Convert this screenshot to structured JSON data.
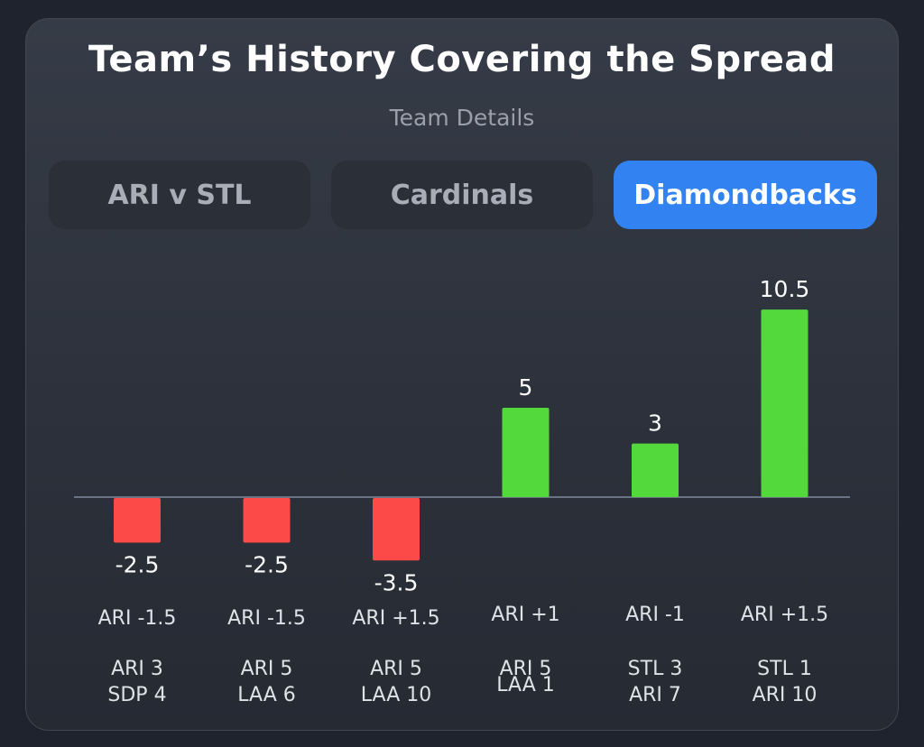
{
  "header": {
    "title": "Team’s History Covering the Spread",
    "subtitle": "Team Details"
  },
  "tabs": [
    {
      "label": "ARI v STL",
      "active": false
    },
    {
      "label": "Cardinals",
      "active": false
    },
    {
      "label": "Diamondbacks",
      "active": true
    }
  ],
  "colors": {
    "positive": "#53d93c",
    "negative": "#fb4a48",
    "accent": "#3283f1"
  },
  "chart_data": {
    "type": "bar",
    "values": [
      -2.5,
      -2.5,
      -3.5,
      5,
      3,
      10.5
    ],
    "value_labels": [
      "-2.5",
      "-2.5",
      "-3.5",
      "5",
      "3",
      "10.5"
    ],
    "spreads": [
      "ARI -1.5",
      "ARI -1.5",
      "ARI +1.5",
      "ARI +1",
      "ARI -1",
      "ARI +1.5"
    ],
    "scores": [
      [
        "ARI 3",
        "SDP 4"
      ],
      [
        "ARI 5",
        "LAA 6"
      ],
      [
        "ARI 5",
        "LAA 10"
      ],
      [
        "ARI 5",
        "LAA 1"
      ],
      [
        "STL 3",
        "ARI 7"
      ],
      [
        "STL 1",
        "ARI 10"
      ]
    ]
  }
}
